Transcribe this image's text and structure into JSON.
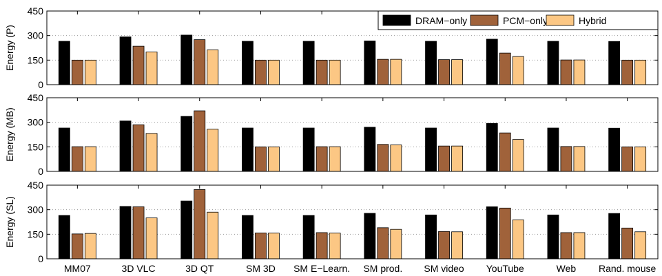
{
  "chart_data": {
    "type": "bar",
    "categories": [
      "MM07",
      "3D VLC",
      "3D QT",
      "SM 3D",
      "SM E−Learn.",
      "SM prod.",
      "SM video",
      "YouTube",
      "Web",
      "Rand. mouse"
    ],
    "legend": {
      "placement": "top-right",
      "entries": [
        {
          "name": "DRAM−only",
          "color": "#000000"
        },
        {
          "name": "PCM−only",
          "color": "#a0623a"
        },
        {
          "name": "Hybrid",
          "color": "#fcc784"
        }
      ]
    },
    "grid": true,
    "panels": [
      {
        "ylabel": "Energy (P)",
        "ylim": [
          0,
          450
        ],
        "yticks": [
          "0",
          "150",
          "300",
          "450"
        ],
        "series": [
          {
            "name": "DRAM−only",
            "values": [
              265,
              292,
              303,
              265,
              265,
              267,
              265,
              278,
              265,
              264
            ]
          },
          {
            "name": "PCM−only",
            "values": [
              150,
              235,
              275,
              150,
              150,
              155,
              153,
              193,
              151,
              150
            ]
          },
          {
            "name": "Hybrid",
            "values": [
              150,
              200,
              213,
              150,
              150,
              155,
              153,
              172,
              151,
              150
            ]
          }
        ]
      },
      {
        "ylabel": "Energy (MB)",
        "ylim": [
          0,
          450
        ],
        "yticks": [
          "0",
          "150",
          "300",
          "450"
        ],
        "series": [
          {
            "name": "DRAM−only",
            "values": [
              265,
              308,
              336,
              265,
              265,
              270,
              265,
              293,
              265,
              264
            ]
          },
          {
            "name": "PCM−only",
            "values": [
              151,
              285,
              370,
              150,
              151,
              165,
              155,
              235,
              152,
              150
            ]
          },
          {
            "name": "Hybrid",
            "values": [
              151,
              232,
              258,
              150,
              151,
              162,
              155,
              195,
              152,
              150
            ]
          }
        ]
      },
      {
        "ylabel": "Energy (SL)",
        "ylim": [
          0,
          450
        ],
        "yticks": [
          "0",
          "150",
          "300",
          "450"
        ],
        "series": [
          {
            "name": "DRAM−only",
            "values": [
              265,
              320,
              353,
              265,
              265,
              278,
              268,
              318,
              268,
              277
            ]
          },
          {
            "name": "PCM−only",
            "values": [
              152,
              318,
              423,
              158,
              160,
              190,
              167,
              310,
              160,
              188
            ]
          },
          {
            "name": "Hybrid",
            "values": [
              155,
              250,
              285,
              157,
              157,
              180,
              165,
              238,
              160,
              165
            ]
          }
        ]
      }
    ]
  }
}
